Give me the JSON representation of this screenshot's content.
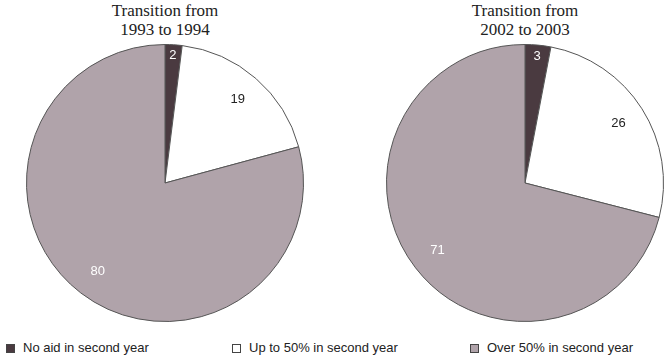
{
  "chart_data": [
    {
      "type": "pie",
      "title": "Transition from 1993 to 1994",
      "categories": [
        "No aid in second year",
        "Up to 50% in second year",
        "Over 50% in second year"
      ],
      "values": [
        2,
        19,
        80
      ],
      "colors": [
        "#4a3a40",
        "#ffffff",
        "#b0a3aa"
      ],
      "data_labels": true,
      "legend": "bottom"
    },
    {
      "type": "pie",
      "title": "Transition from 2002 to 2003",
      "categories": [
        "No aid in second year",
        "Up to 50% in second year",
        "Over 50% in second year"
      ],
      "values": [
        3,
        26,
        71
      ],
      "colors": [
        "#4a3a40",
        "#ffffff",
        "#b0a3aa"
      ],
      "data_labels": true,
      "legend": "bottom"
    }
  ]
}
